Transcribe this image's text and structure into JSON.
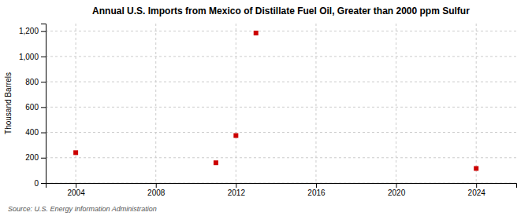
{
  "chart_data": {
    "type": "scatter",
    "title": "Annual U.S. Imports from Mexico of Distillate Fuel Oil, Greater than 2000 ppm Sulfur",
    "ylabel": "Thousand Barrels",
    "source": "Source: U.S. Energy Information Administration",
    "x": [
      2004,
      2011,
      2012,
      2013,
      2024
    ],
    "values": [
      240,
      160,
      375,
      1185,
      115
    ],
    "color": "#cc0000",
    "marker": "square",
    "xlim": [
      2002.5,
      2026
    ],
    "ylim": [
      0,
      1260
    ],
    "xticks": [
      2004,
      2008,
      2012,
      2016,
      2020,
      2024
    ],
    "yticks": [
      0,
      200,
      400,
      600,
      800,
      {
        "value": 1000,
        "label": "1,000"
      },
      {
        "value": 1200,
        "label": "1,200"
      }
    ],
    "grid": true
  }
}
